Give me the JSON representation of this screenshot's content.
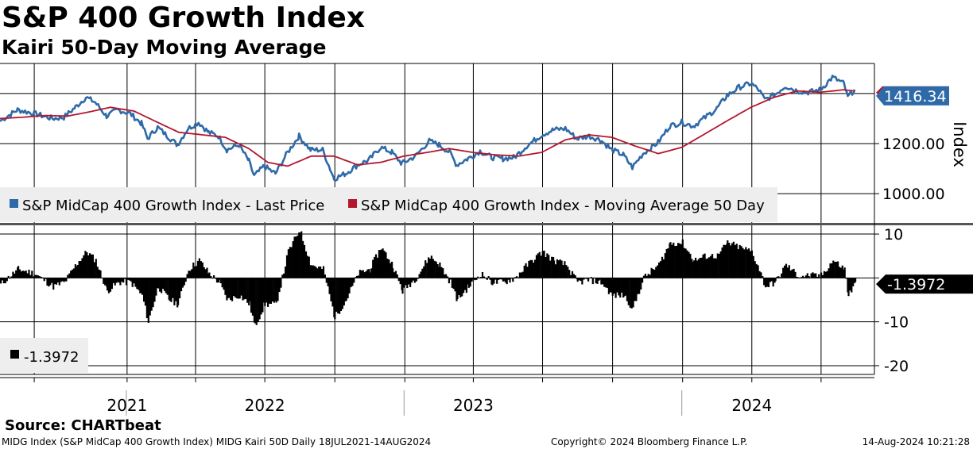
{
  "header": {
    "title": "S&P 400 Growth Index",
    "subtitle": "Kairi 50-Day Moving Average"
  },
  "footer": {
    "source": "Source: CHARTbeat",
    "description": "MIDG Index (S&P MidCap 400 Growth Index) MIDG Kairi 50D  Daily 18JUL2021-14AUG2024",
    "copyright": "Copyright© 2024 Bloomberg Finance L.P.",
    "timestamp": "14-Aug-2024 10:21:28"
  },
  "colors": {
    "price": "#2e6aa8",
    "ma": "#b4162e",
    "kairi": "#000000",
    "legend_bg": "#eeeeee",
    "grid": "#000000"
  },
  "chart_data": [
    {
      "type": "line",
      "panel": "upper",
      "y_axis_label": "Index",
      "ylim": [
        880,
        1520
      ],
      "y_ticks": [
        {
          "value": 1000,
          "label": "1000.00"
        },
        {
          "value": 1200,
          "label": "1200.00"
        }
      ],
      "last_value_label": "1416.34",
      "x_range": [
        "2021-07-18",
        "2024-08-14"
      ],
      "x_ticks": [
        {
          "date": "2021-09-01",
          "label": ""
        },
        {
          "date": "2022-01-01",
          "label": "2021"
        },
        {
          "date": "2022-04-01",
          "label": ""
        },
        {
          "date": "2022-07-01",
          "label": "2022"
        },
        {
          "date": "2022-10-01",
          "label": ""
        },
        {
          "date": "2023-01-01",
          "label": ""
        },
        {
          "date": "2023-04-01",
          "label": "2023"
        },
        {
          "date": "2023-07-01",
          "label": ""
        },
        {
          "date": "2023-10-01",
          "label": ""
        },
        {
          "date": "2024-01-01",
          "label": ""
        },
        {
          "date": "2024-04-01",
          "label": "2024"
        },
        {
          "date": "2024-07-01",
          "label": ""
        }
      ],
      "series": [
        {
          "name": "S&P MidCap 400 Growth Index - Last Price",
          "color": "#2e6aa8",
          "points": [
            [
              "2021-07-18",
              1290
            ],
            [
              "2021-08-10",
              1335
            ],
            [
              "2021-09-01",
              1320
            ],
            [
              "2021-09-25",
              1300
            ],
            [
              "2021-10-10",
              1305
            ],
            [
              "2021-10-25",
              1345
            ],
            [
              "2021-11-08",
              1385
            ],
            [
              "2021-11-20",
              1365
            ],
            [
              "2021-12-05",
              1310
            ],
            [
              "2021-12-20",
              1335
            ],
            [
              "2022-01-05",
              1320
            ],
            [
              "2022-01-20",
              1280
            ],
            [
              "2022-01-28",
              1220
            ],
            [
              "2022-02-10",
              1265
            ],
            [
              "2022-02-25",
              1225
            ],
            [
              "2022-03-08",
              1195
            ],
            [
              "2022-03-22",
              1260
            ],
            [
              "2022-04-05",
              1285
            ],
            [
              "2022-04-18",
              1245
            ],
            [
              "2022-05-01",
              1230
            ],
            [
              "2022-05-12",
              1175
            ],
            [
              "2022-05-28",
              1195
            ],
            [
              "2022-06-10",
              1130
            ],
            [
              "2022-06-17",
              1070
            ],
            [
              "2022-06-30",
              1110
            ],
            [
              "2022-07-15",
              1080
            ],
            [
              "2022-07-31",
              1165
            ],
            [
              "2022-08-15",
              1230
            ],
            [
              "2022-08-30",
              1175
            ],
            [
              "2022-09-15",
              1175
            ],
            [
              "2022-09-30",
              1060
            ],
            [
              "2022-10-15",
              1080
            ],
            [
              "2022-10-31",
              1115
            ],
            [
              "2022-11-15",
              1135
            ],
            [
              "2022-11-30",
              1185
            ],
            [
              "2022-12-15",
              1165
            ],
            [
              "2022-12-28",
              1120
            ],
            [
              "2023-01-15",
              1150
            ],
            [
              "2023-02-02",
              1210
            ],
            [
              "2023-02-15",
              1195
            ],
            [
              "2023-03-01",
              1165
            ],
            [
              "2023-03-10",
              1115
            ],
            [
              "2023-03-25",
              1140
            ],
            [
              "2023-04-10",
              1170
            ],
            [
              "2023-04-25",
              1145
            ],
            [
              "2023-05-10",
              1140
            ],
            [
              "2023-05-25",
              1145
            ],
            [
              "2023-06-10",
              1190
            ],
            [
              "2023-06-30",
              1235
            ],
            [
              "2023-07-15",
              1255
            ],
            [
              "2023-07-31",
              1260
            ],
            [
              "2023-08-15",
              1220
            ],
            [
              "2023-08-31",
              1230
            ],
            [
              "2023-09-15",
              1215
            ],
            [
              "2023-09-30",
              1175
            ],
            [
              "2023-10-15",
              1155
            ],
            [
              "2023-10-27",
              1105
            ],
            [
              "2023-11-10",
              1160
            ],
            [
              "2023-11-30",
              1205
            ],
            [
              "2023-12-15",
              1270
            ],
            [
              "2023-12-31",
              1285
            ],
            [
              "2024-01-15",
              1270
            ],
            [
              "2024-01-31",
              1305
            ],
            [
              "2024-02-15",
              1340
            ],
            [
              "2024-02-28",
              1390
            ],
            [
              "2024-03-15",
              1425
            ],
            [
              "2024-03-31",
              1440
            ],
            [
              "2024-04-10",
              1415
            ],
            [
              "2024-04-18",
              1375
            ],
            [
              "2024-05-01",
              1395
            ],
            [
              "2024-05-15",
              1430
            ],
            [
              "2024-05-31",
              1410
            ],
            [
              "2024-06-15",
              1405
            ],
            [
              "2024-06-30",
              1415
            ],
            [
              "2024-07-16",
              1465
            ],
            [
              "2024-07-31",
              1440
            ],
            [
              "2024-08-05",
              1385
            ],
            [
              "2024-08-14",
              1416
            ]
          ]
        },
        {
          "name": "S&P MidCap 400 Growth Index - Moving Average 50 Day",
          "color": "#b4162e",
          "points": [
            [
              "2021-07-18",
              1300
            ],
            [
              "2021-08-15",
              1305
            ],
            [
              "2021-09-15",
              1312
            ],
            [
              "2021-10-15",
              1310
            ],
            [
              "2021-11-10",
              1325
            ],
            [
              "2021-12-10",
              1345
            ],
            [
              "2022-01-10",
              1330
            ],
            [
              "2022-02-10",
              1285
            ],
            [
              "2022-03-10",
              1245
            ],
            [
              "2022-04-10",
              1235
            ],
            [
              "2022-05-10",
              1225
            ],
            [
              "2022-06-10",
              1180
            ],
            [
              "2022-07-05",
              1125
            ],
            [
              "2022-07-31",
              1110
            ],
            [
              "2022-08-31",
              1150
            ],
            [
              "2022-09-30",
              1150
            ],
            [
              "2022-10-31",
              1115
            ],
            [
              "2022-11-30",
              1125
            ],
            [
              "2022-12-31",
              1150
            ],
            [
              "2023-01-31",
              1165
            ],
            [
              "2023-02-28",
              1180
            ],
            [
              "2023-03-31",
              1165
            ],
            [
              "2023-04-30",
              1155
            ],
            [
              "2023-05-31",
              1150
            ],
            [
              "2023-06-30",
              1165
            ],
            [
              "2023-07-31",
              1215
            ],
            [
              "2023-08-31",
              1235
            ],
            [
              "2023-09-30",
              1225
            ],
            [
              "2023-10-31",
              1190
            ],
            [
              "2023-11-30",
              1160
            ],
            [
              "2023-12-31",
              1185
            ],
            [
              "2024-01-31",
              1240
            ],
            [
              "2024-02-28",
              1290
            ],
            [
              "2024-03-31",
              1345
            ],
            [
              "2024-04-30",
              1385
            ],
            [
              "2024-05-31",
              1410
            ],
            [
              "2024-06-30",
              1405
            ],
            [
              "2024-07-31",
              1415
            ],
            [
              "2024-08-14",
              1410
            ]
          ]
        }
      ],
      "legend": [
        {
          "label": "S&P MidCap 400 Growth Index - Last Price",
          "color": "#2e6aa8"
        },
        {
          "label": "S&P MidCap 400 Growth Index - Moving Average 50 Day",
          "color": "#b4162e"
        }
      ]
    },
    {
      "type": "bar",
      "panel": "lower",
      "ylim": [
        -22,
        12
      ],
      "y_ticks": [
        {
          "value": 10,
          "label": "10"
        },
        {
          "value": 0,
          "label": ""
        },
        {
          "value": -10,
          "label": "-10"
        },
        {
          "value": -20,
          "label": "-20"
        }
      ],
      "last_value_label": "-1.3972",
      "series": [
        {
          "name": "Kairi 50D",
          "color": "#000000",
          "points": [
            [
              "2021-07-18",
              -1.5
            ],
            [
              "2021-08-10",
              2
            ],
            [
              "2021-09-01",
              1
            ],
            [
              "2021-09-25",
              -2
            ],
            [
              "2021-10-10",
              -1
            ],
            [
              "2021-10-25",
              3
            ],
            [
              "2021-11-08",
              6
            ],
            [
              "2021-11-20",
              4
            ],
            [
              "2021-12-05",
              -3
            ],
            [
              "2021-12-20",
              -1
            ],
            [
              "2022-01-05",
              -1
            ],
            [
              "2022-01-20",
              -4
            ],
            [
              "2022-01-28",
              -10
            ],
            [
              "2022-02-10",
              -2
            ],
            [
              "2022-02-25",
              -5
            ],
            [
              "2022-03-08",
              -6
            ],
            [
              "2022-03-22",
              2
            ],
            [
              "2022-04-05",
              4
            ],
            [
              "2022-04-18",
              1
            ],
            [
              "2022-05-01",
              -1
            ],
            [
              "2022-05-12",
              -5
            ],
            [
              "2022-05-28",
              -4
            ],
            [
              "2022-06-10",
              -6
            ],
            [
              "2022-06-17",
              -11
            ],
            [
              "2022-06-30",
              -6
            ],
            [
              "2022-07-15",
              -6
            ],
            [
              "2022-07-31",
              6
            ],
            [
              "2022-08-15",
              11
            ],
            [
              "2022-08-30",
              3
            ],
            [
              "2022-09-15",
              2
            ],
            [
              "2022-09-30",
              -9
            ],
            [
              "2022-10-15",
              -5
            ],
            [
              "2022-10-31",
              1
            ],
            [
              "2022-11-15",
              2
            ],
            [
              "2022-11-30",
              7
            ],
            [
              "2022-12-15",
              3
            ],
            [
              "2022-12-28",
              -3
            ],
            [
              "2023-01-15",
              0
            ],
            [
              "2023-02-02",
              5
            ],
            [
              "2023-02-15",
              3
            ],
            [
              "2023-03-01",
              -1
            ],
            [
              "2023-03-10",
              -5
            ],
            [
              "2023-03-25",
              -2
            ],
            [
              "2023-04-10",
              1
            ],
            [
              "2023-04-25",
              -1
            ],
            [
              "2023-05-10",
              -1
            ],
            [
              "2023-05-25",
              0
            ],
            [
              "2023-06-10",
              3
            ],
            [
              "2023-06-30",
              6
            ],
            [
              "2023-07-15",
              4
            ],
            [
              "2023-07-31",
              3
            ],
            [
              "2023-08-15",
              -1
            ],
            [
              "2023-08-31",
              -0.5
            ],
            [
              "2023-09-15",
              -1
            ],
            [
              "2023-09-30",
              -4
            ],
            [
              "2023-10-15",
              -4
            ],
            [
              "2023-10-27",
              -7
            ],
            [
              "2023-11-10",
              0
            ],
            [
              "2023-11-30",
              3
            ],
            [
              "2023-12-15",
              8
            ],
            [
              "2023-12-31",
              8
            ],
            [
              "2024-01-15",
              4
            ],
            [
              "2024-01-31",
              5
            ],
            [
              "2024-02-15",
              5
            ],
            [
              "2024-02-28",
              8
            ],
            [
              "2024-03-15",
              7
            ],
            [
              "2024-03-31",
              6
            ],
            [
              "2024-04-10",
              2
            ],
            [
              "2024-04-18",
              -2
            ],
            [
              "2024-05-01",
              -1
            ],
            [
              "2024-05-15",
              3
            ],
            [
              "2024-05-31",
              0.5
            ],
            [
              "2024-06-15",
              0.5
            ],
            [
              "2024-06-30",
              0.5
            ],
            [
              "2024-07-16",
              4
            ],
            [
              "2024-07-31",
              2
            ],
            [
              "2024-08-05",
              -4
            ],
            [
              "2024-08-14",
              -1.4
            ]
          ]
        }
      ],
      "legend": [
        {
          "label": "-1.3972",
          "color": "#000000"
        }
      ]
    }
  ]
}
